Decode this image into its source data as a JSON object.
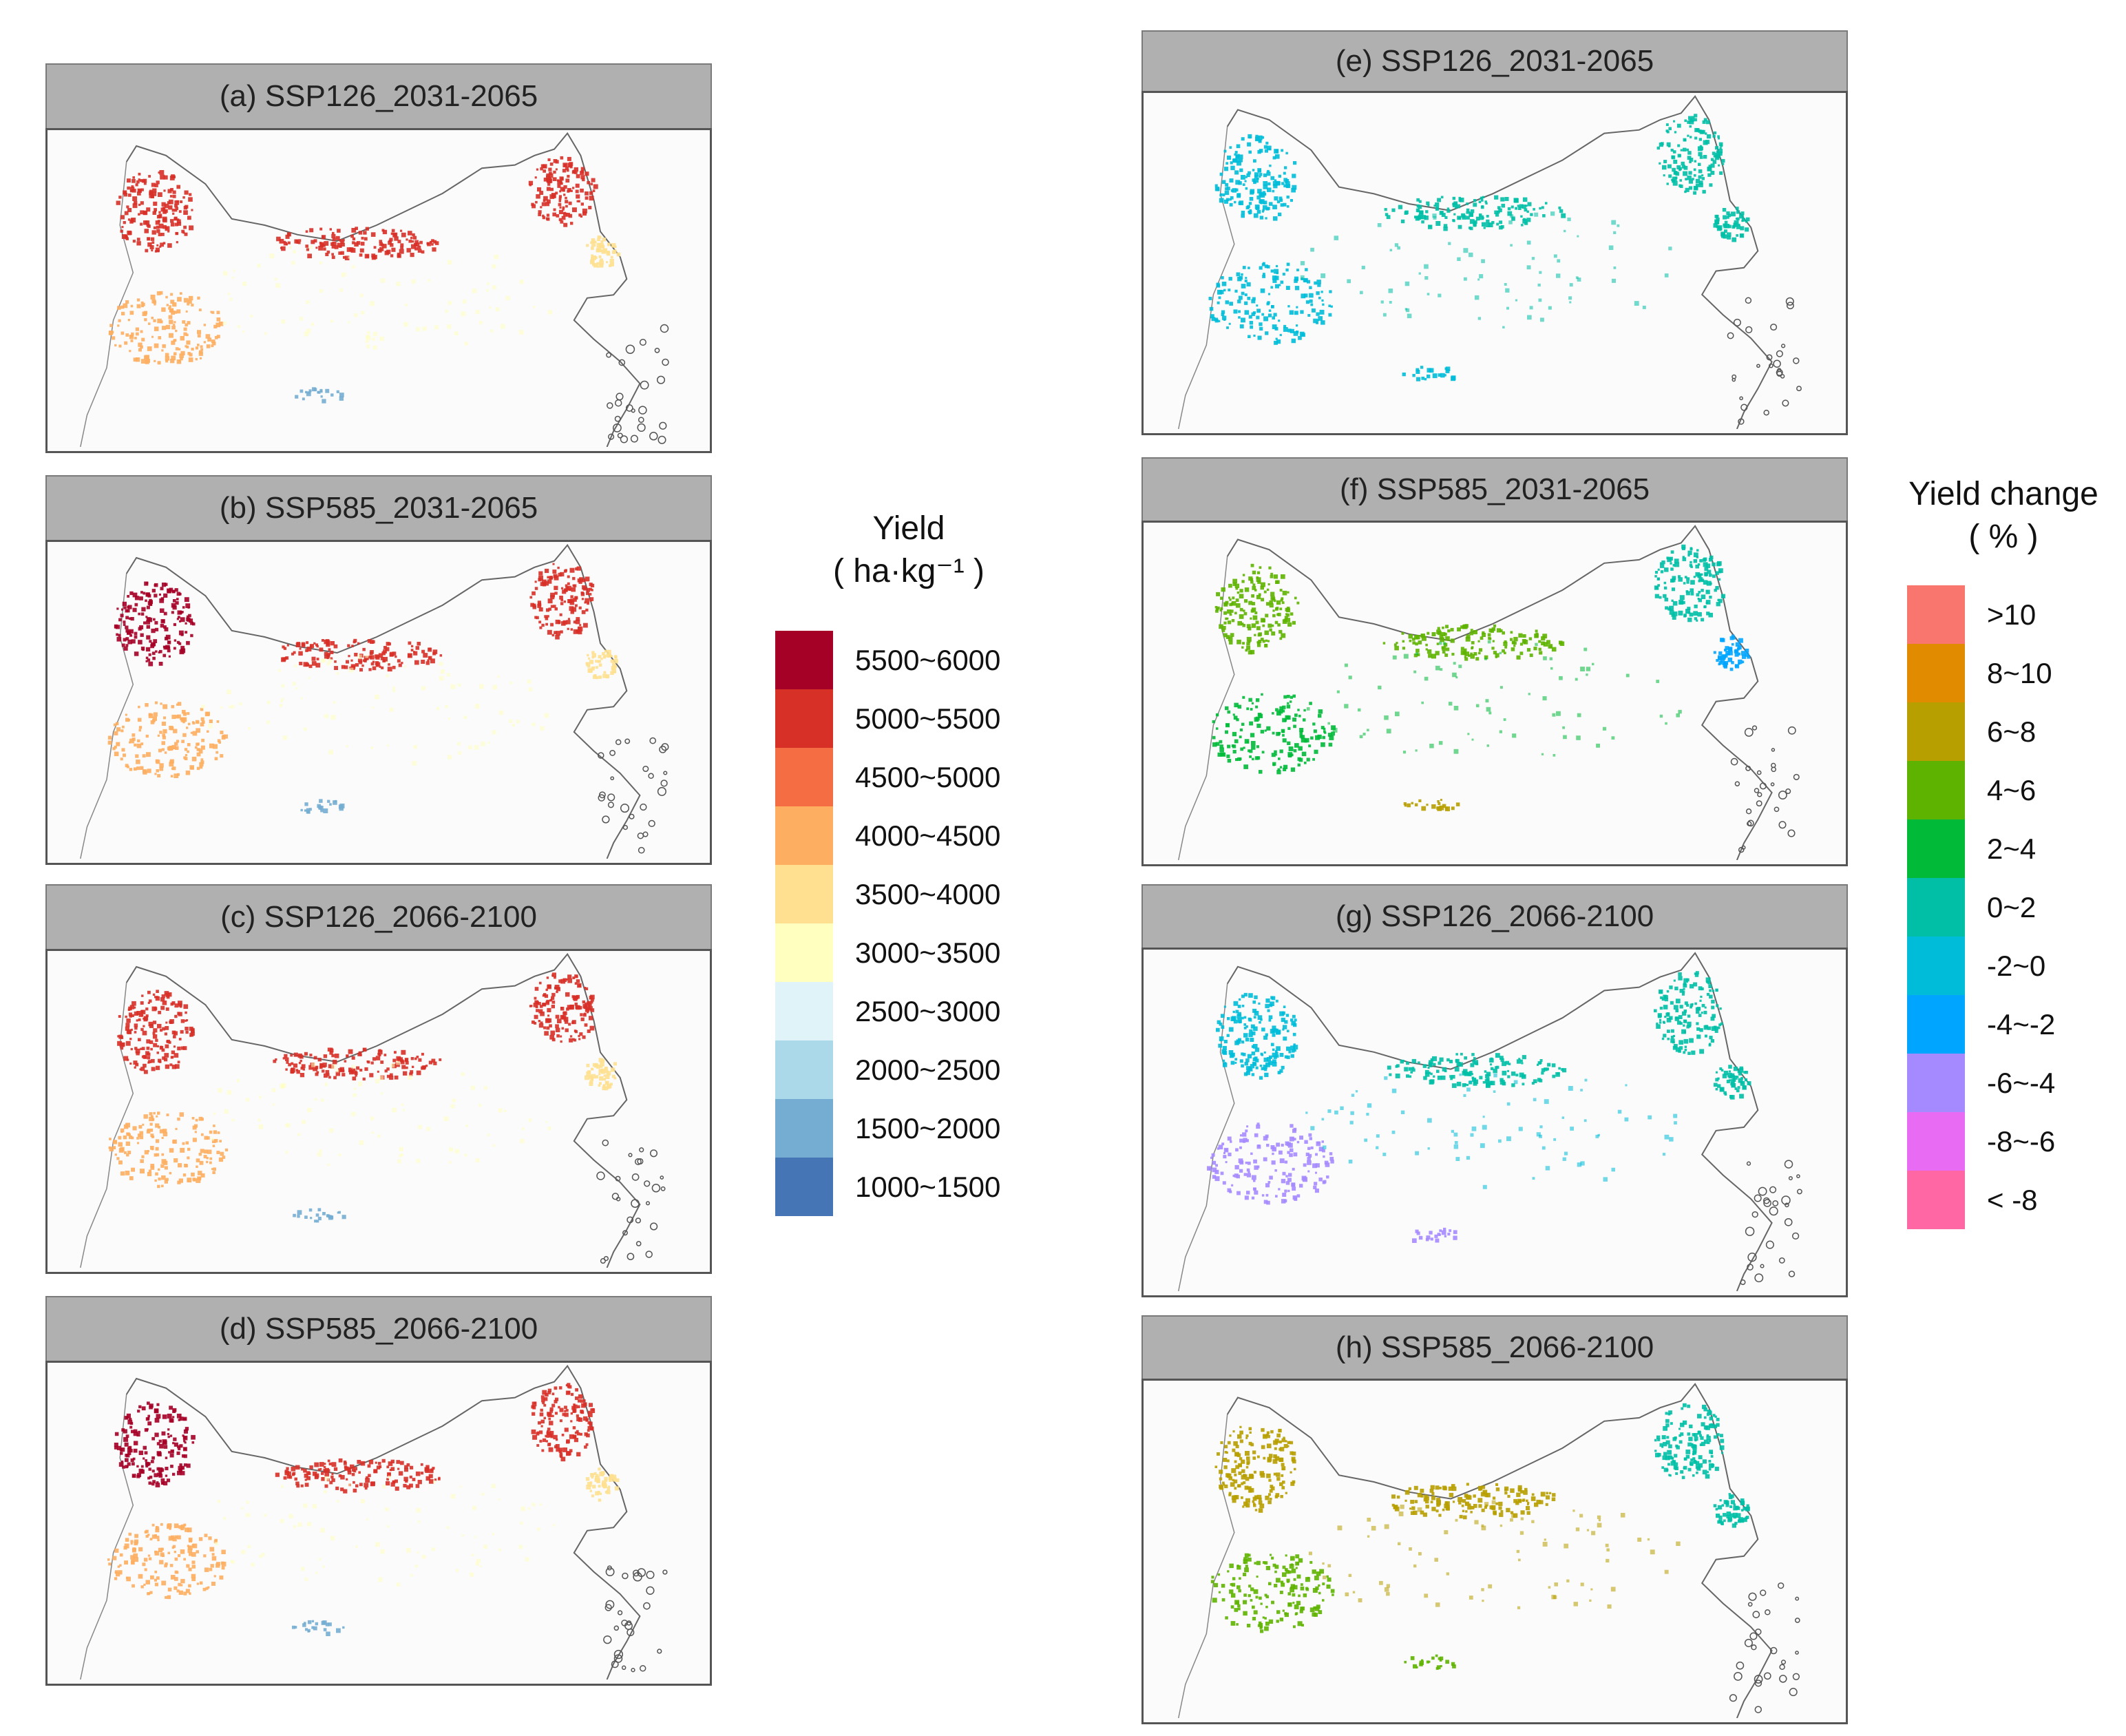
{
  "yield_legend": {
    "title": "Yield",
    "unit": "( ha·kg⁻¹ )",
    "classes": [
      {
        "label": "5500~6000",
        "color": "#a50026"
      },
      {
        "label": "5000~5500",
        "color": "#d73027"
      },
      {
        "label": "4500~5000",
        "color": "#f46d43"
      },
      {
        "label": "4000~4500",
        "color": "#fdae61"
      },
      {
        "label": "3500~4000",
        "color": "#fee090"
      },
      {
        "label": "3000~3500",
        "color": "#ffffbf"
      },
      {
        "label": "2500~3000",
        "color": "#e0f3f8"
      },
      {
        "label": "2000~2500",
        "color": "#abd9e9"
      },
      {
        "label": "1500~2000",
        "color": "#74add1"
      },
      {
        "label": "1000~1500",
        "color": "#4575b4"
      }
    ]
  },
  "change_legend": {
    "title": "Yield change",
    "unit": "( % )",
    "classes": [
      {
        "label": ">10",
        "color": "#f8766d"
      },
      {
        "label": "8~10",
        "color": "#e08b00"
      },
      {
        "label": "6~8",
        "color": "#b79f00"
      },
      {
        "label": "4~6",
        "color": "#5eb300"
      },
      {
        "label": "2~4",
        "color": "#00ba38"
      },
      {
        "label": "0~2",
        "color": "#00bfa6"
      },
      {
        "label": "-2~0",
        "color": "#00bcd8"
      },
      {
        "label": "-4~-2",
        "color": "#00a5ff"
      },
      {
        "label": "-6~-4",
        "color": "#a58aff"
      },
      {
        "label": "-8~-6",
        "color": "#e76bf3"
      },
      {
        "label": "< -8",
        "color": "#ff67a4"
      }
    ]
  },
  "panels": [
    {
      "id": "a",
      "title": "(a) SSP126_2031-2065",
      "palette": "yield",
      "regions": {
        "northwest": 1,
        "north_coast": 1,
        "northeast": 1,
        "east_coast": 4,
        "southwest": 3,
        "south_interior": 8,
        "interior": 5
      }
    },
    {
      "id": "b",
      "title": "(b) SSP585_2031-2065",
      "palette": "yield",
      "regions": {
        "northwest": 0,
        "north_coast": 1,
        "northeast": 1,
        "east_coast": 4,
        "southwest": 3,
        "south_interior": 8,
        "interior": 5
      }
    },
    {
      "id": "c",
      "title": "(c) SSP126_2066-2100",
      "palette": "yield",
      "regions": {
        "northwest": 1,
        "north_coast": 1,
        "northeast": 1,
        "east_coast": 4,
        "southwest": 3,
        "south_interior": 8,
        "interior": 5
      }
    },
    {
      "id": "d",
      "title": "(d) SSP585_2066-2100",
      "palette": "yield",
      "regions": {
        "northwest": 0,
        "north_coast": 1,
        "northeast": 1,
        "east_coast": 4,
        "southwest": 3,
        "south_interior": 8,
        "interior": 5
      }
    },
    {
      "id": "e",
      "title": "(e) SSP126_2031-2065",
      "palette": "change",
      "regions": {
        "northwest": 6,
        "north_coast": 5,
        "northeast": 5,
        "east_coast": 5,
        "southwest": 6,
        "south_interior": 6,
        "interior": 5
      }
    },
    {
      "id": "f",
      "title": "(f) SSP585_2031-2065",
      "palette": "change",
      "regions": {
        "northwest": 3,
        "north_coast": 3,
        "northeast": 5,
        "east_coast": 7,
        "southwest": 4,
        "south_interior": 2,
        "interior": 4
      }
    },
    {
      "id": "g",
      "title": "(g) SSP126_2066-2100",
      "palette": "change",
      "regions": {
        "northwest": 6,
        "north_coast": 5,
        "northeast": 5,
        "east_coast": 5,
        "southwest": 8,
        "south_interior": 8,
        "interior": 6
      }
    },
    {
      "id": "h",
      "title": "(h) SSP585_2066-2100",
      "palette": "change",
      "regions": {
        "northwest": 2,
        "north_coast": 2,
        "northeast": 5,
        "east_coast": 5,
        "southwest": 3,
        "south_interior": 3,
        "interior": 2
      }
    }
  ]
}
